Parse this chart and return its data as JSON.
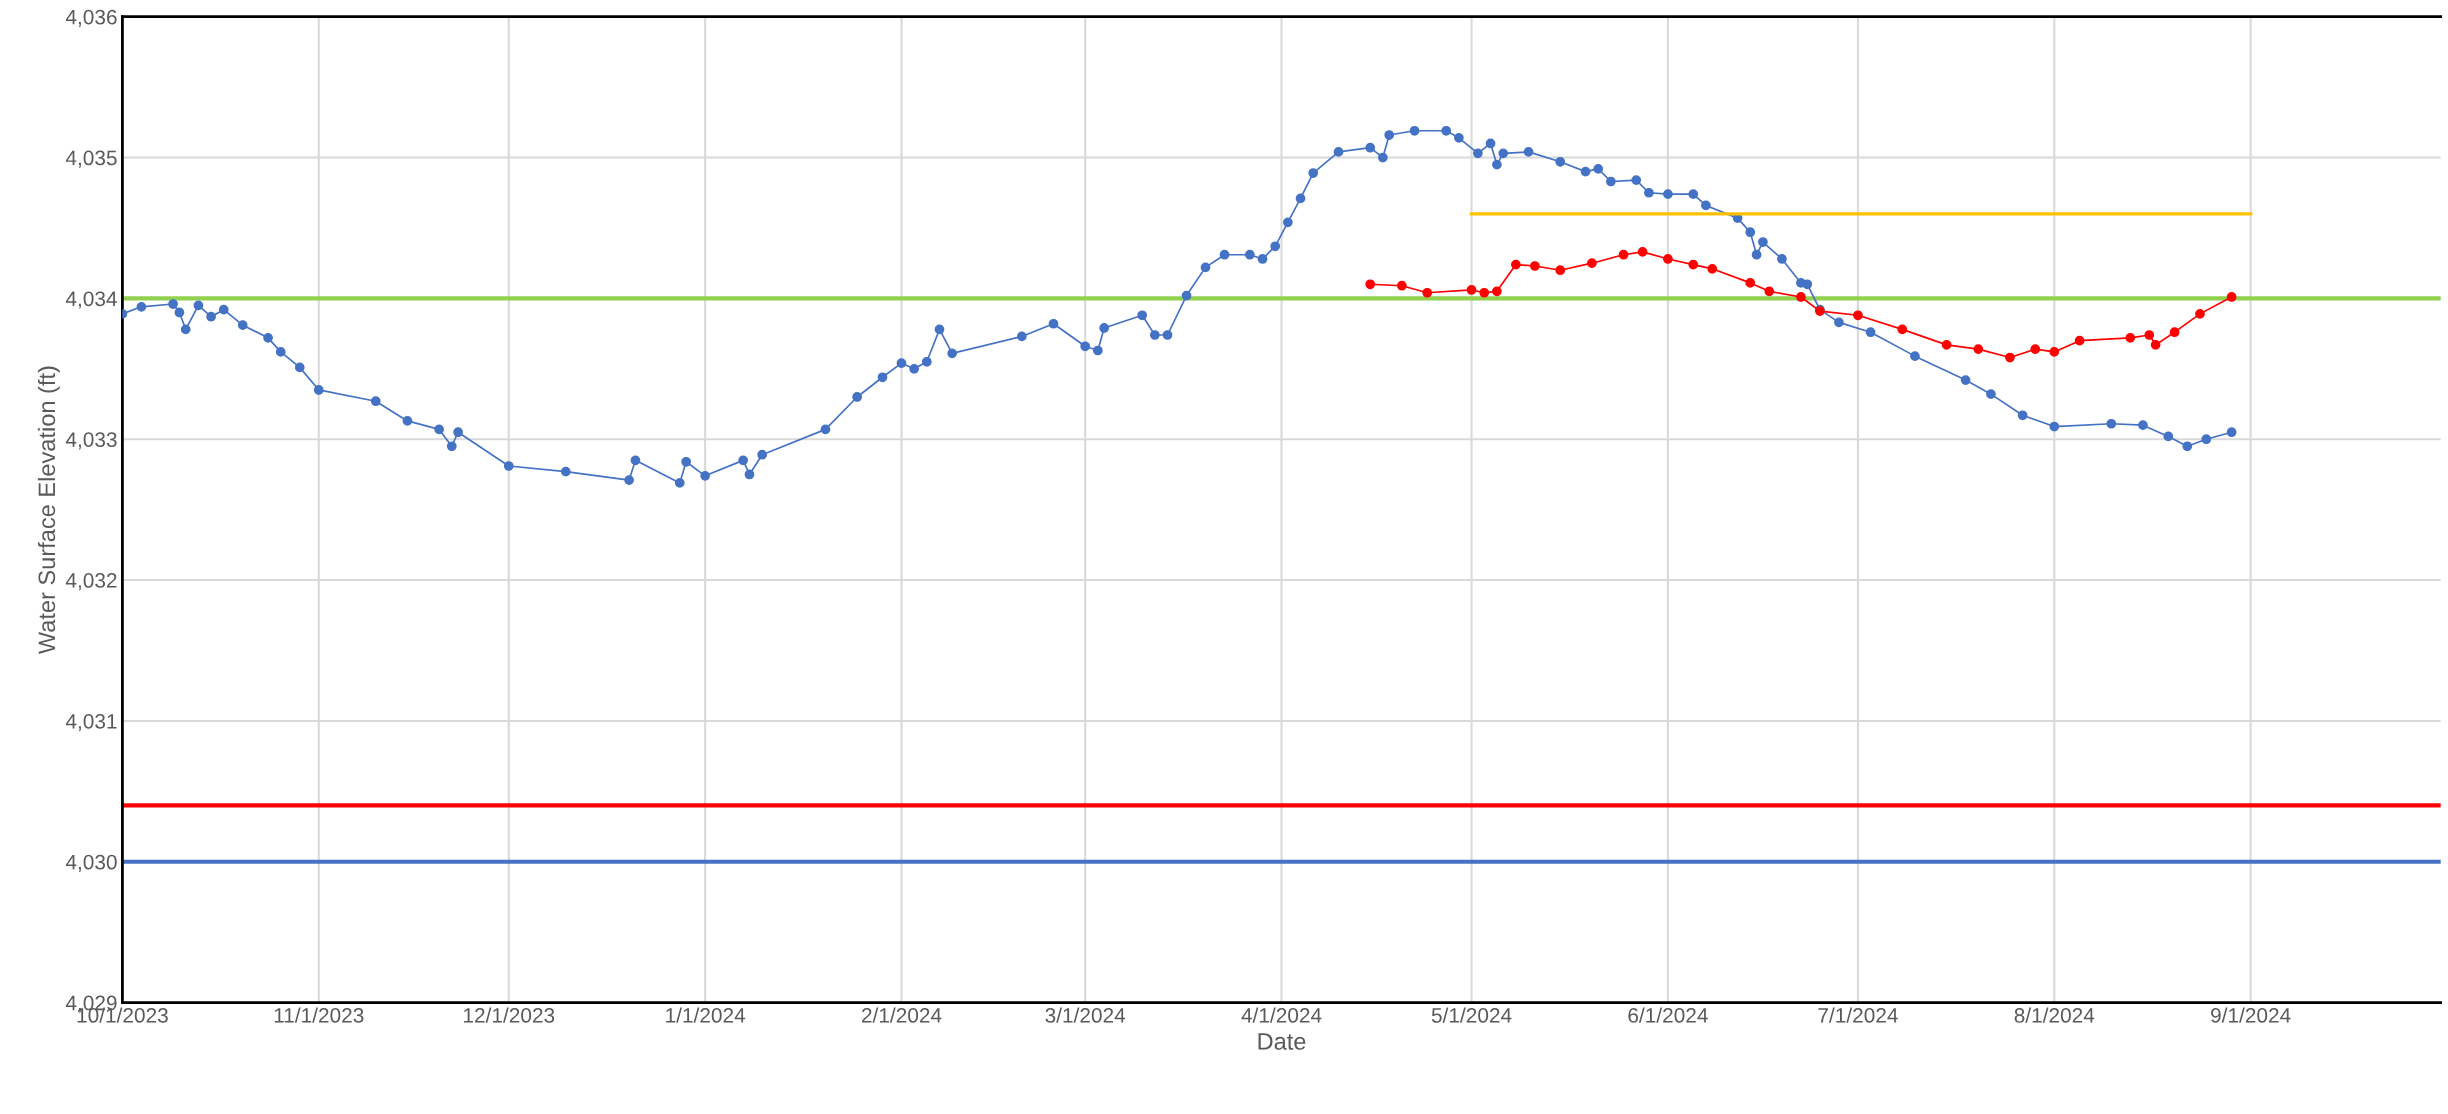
{
  "chart_data": {
    "type": "line",
    "xlabel": "Date",
    "ylabel": "Water Surface Elevation (ft)",
    "xlim": [
      "2023-10-01",
      "2024-10-01"
    ],
    "xticks": [
      {
        "value": "2023-10-01",
        "label": "10/1/2023"
      },
      {
        "value": "2023-11-01",
        "label": "11/1/2023"
      },
      {
        "value": "2023-12-01",
        "label": "12/1/2023"
      },
      {
        "value": "2024-01-01",
        "label": "1/1/2024"
      },
      {
        "value": "2024-02-01",
        "label": "2/1/2024"
      },
      {
        "value": "2024-03-01",
        "label": "3/1/2024"
      },
      {
        "value": "2024-04-01",
        "label": "4/1/2024"
      },
      {
        "value": "2024-05-01",
        "label": "5/1/2024"
      },
      {
        "value": "2024-06-01",
        "label": "6/1/2024"
      },
      {
        "value": "2024-07-01",
        "label": "7/1/2024"
      },
      {
        "value": "2024-08-01",
        "label": "8/1/2024"
      },
      {
        "value": "2024-09-01",
        "label": "9/1/2024"
      }
    ],
    "ylim": [
      4029,
      4036
    ],
    "yticks": [
      {
        "value": 4029,
        "label": "4,029"
      },
      {
        "value": 4030,
        "label": "4,030"
      },
      {
        "value": 4031,
        "label": "4,031"
      },
      {
        "value": 4032,
        "label": "4,032"
      },
      {
        "value": 4033,
        "label": "4,033"
      },
      {
        "value": 4034,
        "label": "4,034"
      },
      {
        "value": 4035,
        "label": "4,035"
      },
      {
        "value": 4036,
        "label": "4,036"
      }
    ],
    "grid": true,
    "legend": false,
    "line_style": "solid",
    "series": [
      {
        "color": "#4472c4",
        "marker": "circle",
        "x": [
          "2023-10-01",
          "2023-10-04",
          "2023-10-09",
          "2023-10-10",
          "2023-10-11",
          "2023-10-13",
          "2023-10-15",
          "2023-10-17",
          "2023-10-20",
          "2023-10-24",
          "2023-10-26",
          "2023-10-29",
          "2023-11-01",
          "2023-11-10",
          "2023-11-15",
          "2023-11-20",
          "2023-11-22",
          "2023-11-23",
          "2023-12-01",
          "2023-12-10",
          "2023-12-20",
          "2023-12-21",
          "2023-12-28",
          "2023-12-29",
          "2024-01-01",
          "2024-01-07",
          "2024-01-08",
          "2024-01-10",
          "2024-01-20",
          "2024-01-25",
          "2024-01-29",
          "2024-02-01",
          "2024-02-03",
          "2024-02-05",
          "2024-02-07",
          "2024-02-09",
          "2024-02-20",
          "2024-02-25",
          "2024-03-01",
          "2024-03-03",
          "2024-03-04",
          "2024-03-10",
          "2024-03-12",
          "2024-03-14",
          "2024-03-17",
          "2024-03-20",
          "2024-03-23",
          "2024-03-27",
          "2024-03-29",
          "2024-03-31",
          "2024-04-02",
          "2024-04-04",
          "2024-04-06",
          "2024-04-10",
          "2024-04-15",
          "2024-04-17",
          "2024-04-18",
          "2024-04-22",
          "2024-04-27",
          "2024-04-29",
          "2024-05-02",
          "2024-05-04",
          "2024-05-05",
          "2024-05-06",
          "2024-05-10",
          "2024-05-15",
          "2024-05-19",
          "2024-05-21",
          "2024-05-23",
          "2024-05-27",
          "2024-05-29",
          "2024-06-01",
          "2024-06-05",
          "2024-06-07",
          "2024-06-12",
          "2024-06-14",
          "2024-06-15",
          "2024-06-16",
          "2024-06-19",
          "2024-06-22",
          "2024-06-23",
          "2024-06-25",
          "2024-06-28",
          "2024-07-03",
          "2024-07-10",
          "2024-07-18",
          "2024-07-22",
          "2024-07-27",
          "2024-08-01",
          "2024-08-10",
          "2024-08-15",
          "2024-08-19",
          "2024-08-22",
          "2024-08-25",
          "2024-08-29"
        ],
        "values": [
          4033.89,
          4033.94,
          4033.96,
          4033.9,
          4033.78,
          4033.95,
          4033.87,
          4033.92,
          4033.81,
          4033.72,
          4033.62,
          4033.51,
          4033.35,
          4033.27,
          4033.13,
          4033.07,
          4032.95,
          4033.05,
          4032.81,
          4032.77,
          4032.71,
          4032.85,
          4032.69,
          4032.84,
          4032.74,
          4032.85,
          4032.75,
          4032.89,
          4033.07,
          4033.3,
          4033.44,
          4033.54,
          4033.5,
          4033.55,
          4033.78,
          4033.61,
          4033.73,
          4033.82,
          4033.66,
          4033.63,
          4033.79,
          4033.88,
          4033.74,
          4033.74,
          4034.02,
          4034.22,
          4034.31,
          4034.31,
          4034.28,
          4034.37,
          4034.54,
          4034.71,
          4034.89,
          4035.04,
          4035.07,
          4035.0,
          4035.16,
          4035.19,
          4035.19,
          4035.14,
          4035.03,
          4035.1,
          4034.95,
          4035.03,
          4035.04,
          4034.97,
          4034.9,
          4034.92,
          4034.83,
          4034.84,
          4034.75,
          4034.74,
          4034.74,
          4034.66,
          4034.57,
          4034.47,
          4034.31,
          4034.4,
          4034.28,
          4034.11,
          4034.1,
          4033.92,
          4033.83,
          4033.76,
          4033.59,
          4033.42,
          4033.32,
          4033.17,
          4033.09,
          4033.11,
          4033.1,
          4033.02,
          4032.95,
          4033.0,
          4033.05
        ]
      },
      {
        "color": "#ff0000",
        "marker": "circle",
        "x": [
          "2024-04-15",
          "2024-04-20",
          "2024-04-24",
          "2024-05-01",
          "2024-05-03",
          "2024-05-05",
          "2024-05-08",
          "2024-05-11",
          "2024-05-15",
          "2024-05-20",
          "2024-05-25",
          "2024-05-28",
          "2024-06-01",
          "2024-06-05",
          "2024-06-08",
          "2024-06-14",
          "2024-06-17",
          "2024-06-22",
          "2024-06-25",
          "2024-07-01",
          "2024-07-08",
          "2024-07-15",
          "2024-07-20",
          "2024-07-25",
          "2024-07-29",
          "2024-08-01",
          "2024-08-05",
          "2024-08-13",
          "2024-08-16",
          "2024-08-17",
          "2024-08-20",
          "2024-08-24",
          "2024-08-29"
        ],
        "values": [
          4034.1,
          4034.09,
          4034.04,
          4034.06,
          4034.04,
          4034.05,
          4034.24,
          4034.23,
          4034.2,
          4034.25,
          4034.31,
          4034.33,
          4034.28,
          4034.24,
          4034.21,
          4034.11,
          4034.05,
          4034.01,
          4033.91,
          4033.88,
          4033.78,
          4033.67,
          4033.64,
          4033.58,
          4033.64,
          4033.62,
          4033.7,
          4033.72,
          4033.74,
          4033.67,
          4033.76,
          4033.89,
          4034.01
        ]
      },
      {
        "color": "#ffc000",
        "marker": "none",
        "x": [
          "2024-05-01",
          "2024-09-01"
        ],
        "values": [
          4034.6,
          4034.6
        ]
      }
    ],
    "ref_lines": [
      {
        "axis": "y",
        "value": 4034,
        "color": "#92d050"
      },
      {
        "axis": "y",
        "value": 4030.4,
        "color": "#ff0000"
      },
      {
        "axis": "y",
        "value": 4030,
        "color": "#4472c4"
      }
    ]
  }
}
